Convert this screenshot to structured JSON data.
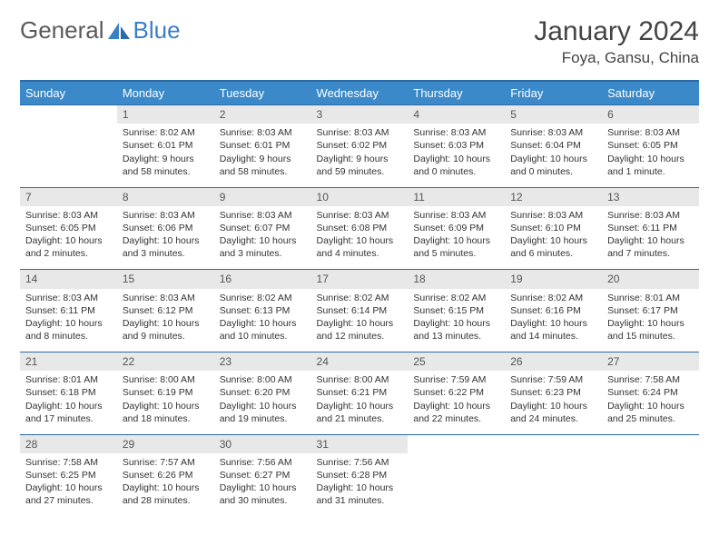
{
  "brand": {
    "left": "General",
    "right": "Blue"
  },
  "title": "January 2024",
  "location": "Foya, Gansu, China",
  "header_color": "#3b89c9",
  "rule_color": "#2b6aa3",
  "daynum_bg": "#e8e8e8",
  "weekdays": [
    "Sunday",
    "Monday",
    "Tuesday",
    "Wednesday",
    "Thursday",
    "Friday",
    "Saturday"
  ],
  "weeks": [
    [
      null,
      {
        "n": "1",
        "sr": "Sunrise: 8:02 AM",
        "ss": "Sunset: 6:01 PM",
        "d1": "Daylight: 9 hours",
        "d2": "and 58 minutes."
      },
      {
        "n": "2",
        "sr": "Sunrise: 8:03 AM",
        "ss": "Sunset: 6:01 PM",
        "d1": "Daylight: 9 hours",
        "d2": "and 58 minutes."
      },
      {
        "n": "3",
        "sr": "Sunrise: 8:03 AM",
        "ss": "Sunset: 6:02 PM",
        "d1": "Daylight: 9 hours",
        "d2": "and 59 minutes."
      },
      {
        "n": "4",
        "sr": "Sunrise: 8:03 AM",
        "ss": "Sunset: 6:03 PM",
        "d1": "Daylight: 10 hours",
        "d2": "and 0 minutes."
      },
      {
        "n": "5",
        "sr": "Sunrise: 8:03 AM",
        "ss": "Sunset: 6:04 PM",
        "d1": "Daylight: 10 hours",
        "d2": "and 0 minutes."
      },
      {
        "n": "6",
        "sr": "Sunrise: 8:03 AM",
        "ss": "Sunset: 6:05 PM",
        "d1": "Daylight: 10 hours",
        "d2": "and 1 minute."
      }
    ],
    [
      {
        "n": "7",
        "sr": "Sunrise: 8:03 AM",
        "ss": "Sunset: 6:05 PM",
        "d1": "Daylight: 10 hours",
        "d2": "and 2 minutes."
      },
      {
        "n": "8",
        "sr": "Sunrise: 8:03 AM",
        "ss": "Sunset: 6:06 PM",
        "d1": "Daylight: 10 hours",
        "d2": "and 3 minutes."
      },
      {
        "n": "9",
        "sr": "Sunrise: 8:03 AM",
        "ss": "Sunset: 6:07 PM",
        "d1": "Daylight: 10 hours",
        "d2": "and 3 minutes."
      },
      {
        "n": "10",
        "sr": "Sunrise: 8:03 AM",
        "ss": "Sunset: 6:08 PM",
        "d1": "Daylight: 10 hours",
        "d2": "and 4 minutes."
      },
      {
        "n": "11",
        "sr": "Sunrise: 8:03 AM",
        "ss": "Sunset: 6:09 PM",
        "d1": "Daylight: 10 hours",
        "d2": "and 5 minutes."
      },
      {
        "n": "12",
        "sr": "Sunrise: 8:03 AM",
        "ss": "Sunset: 6:10 PM",
        "d1": "Daylight: 10 hours",
        "d2": "and 6 minutes."
      },
      {
        "n": "13",
        "sr": "Sunrise: 8:03 AM",
        "ss": "Sunset: 6:11 PM",
        "d1": "Daylight: 10 hours",
        "d2": "and 7 minutes."
      }
    ],
    [
      {
        "n": "14",
        "sr": "Sunrise: 8:03 AM",
        "ss": "Sunset: 6:11 PM",
        "d1": "Daylight: 10 hours",
        "d2": "and 8 minutes."
      },
      {
        "n": "15",
        "sr": "Sunrise: 8:03 AM",
        "ss": "Sunset: 6:12 PM",
        "d1": "Daylight: 10 hours",
        "d2": "and 9 minutes."
      },
      {
        "n": "16",
        "sr": "Sunrise: 8:02 AM",
        "ss": "Sunset: 6:13 PM",
        "d1": "Daylight: 10 hours",
        "d2": "and 10 minutes."
      },
      {
        "n": "17",
        "sr": "Sunrise: 8:02 AM",
        "ss": "Sunset: 6:14 PM",
        "d1": "Daylight: 10 hours",
        "d2": "and 12 minutes."
      },
      {
        "n": "18",
        "sr": "Sunrise: 8:02 AM",
        "ss": "Sunset: 6:15 PM",
        "d1": "Daylight: 10 hours",
        "d2": "and 13 minutes."
      },
      {
        "n": "19",
        "sr": "Sunrise: 8:02 AM",
        "ss": "Sunset: 6:16 PM",
        "d1": "Daylight: 10 hours",
        "d2": "and 14 minutes."
      },
      {
        "n": "20",
        "sr": "Sunrise: 8:01 AM",
        "ss": "Sunset: 6:17 PM",
        "d1": "Daylight: 10 hours",
        "d2": "and 15 minutes."
      }
    ],
    [
      {
        "n": "21",
        "sr": "Sunrise: 8:01 AM",
        "ss": "Sunset: 6:18 PM",
        "d1": "Daylight: 10 hours",
        "d2": "and 17 minutes."
      },
      {
        "n": "22",
        "sr": "Sunrise: 8:00 AM",
        "ss": "Sunset: 6:19 PM",
        "d1": "Daylight: 10 hours",
        "d2": "and 18 minutes."
      },
      {
        "n": "23",
        "sr": "Sunrise: 8:00 AM",
        "ss": "Sunset: 6:20 PM",
        "d1": "Daylight: 10 hours",
        "d2": "and 19 minutes."
      },
      {
        "n": "24",
        "sr": "Sunrise: 8:00 AM",
        "ss": "Sunset: 6:21 PM",
        "d1": "Daylight: 10 hours",
        "d2": "and 21 minutes."
      },
      {
        "n": "25",
        "sr": "Sunrise: 7:59 AM",
        "ss": "Sunset: 6:22 PM",
        "d1": "Daylight: 10 hours",
        "d2": "and 22 minutes."
      },
      {
        "n": "26",
        "sr": "Sunrise: 7:59 AM",
        "ss": "Sunset: 6:23 PM",
        "d1": "Daylight: 10 hours",
        "d2": "and 24 minutes."
      },
      {
        "n": "27",
        "sr": "Sunrise: 7:58 AM",
        "ss": "Sunset: 6:24 PM",
        "d1": "Daylight: 10 hours",
        "d2": "and 25 minutes."
      }
    ],
    [
      {
        "n": "28",
        "sr": "Sunrise: 7:58 AM",
        "ss": "Sunset: 6:25 PM",
        "d1": "Daylight: 10 hours",
        "d2": "and 27 minutes."
      },
      {
        "n": "29",
        "sr": "Sunrise: 7:57 AM",
        "ss": "Sunset: 6:26 PM",
        "d1": "Daylight: 10 hours",
        "d2": "and 28 minutes."
      },
      {
        "n": "30",
        "sr": "Sunrise: 7:56 AM",
        "ss": "Sunset: 6:27 PM",
        "d1": "Daylight: 10 hours",
        "d2": "and 30 minutes."
      },
      {
        "n": "31",
        "sr": "Sunrise: 7:56 AM",
        "ss": "Sunset: 6:28 PM",
        "d1": "Daylight: 10 hours",
        "d2": "and 31 minutes."
      },
      null,
      null,
      null
    ]
  ]
}
